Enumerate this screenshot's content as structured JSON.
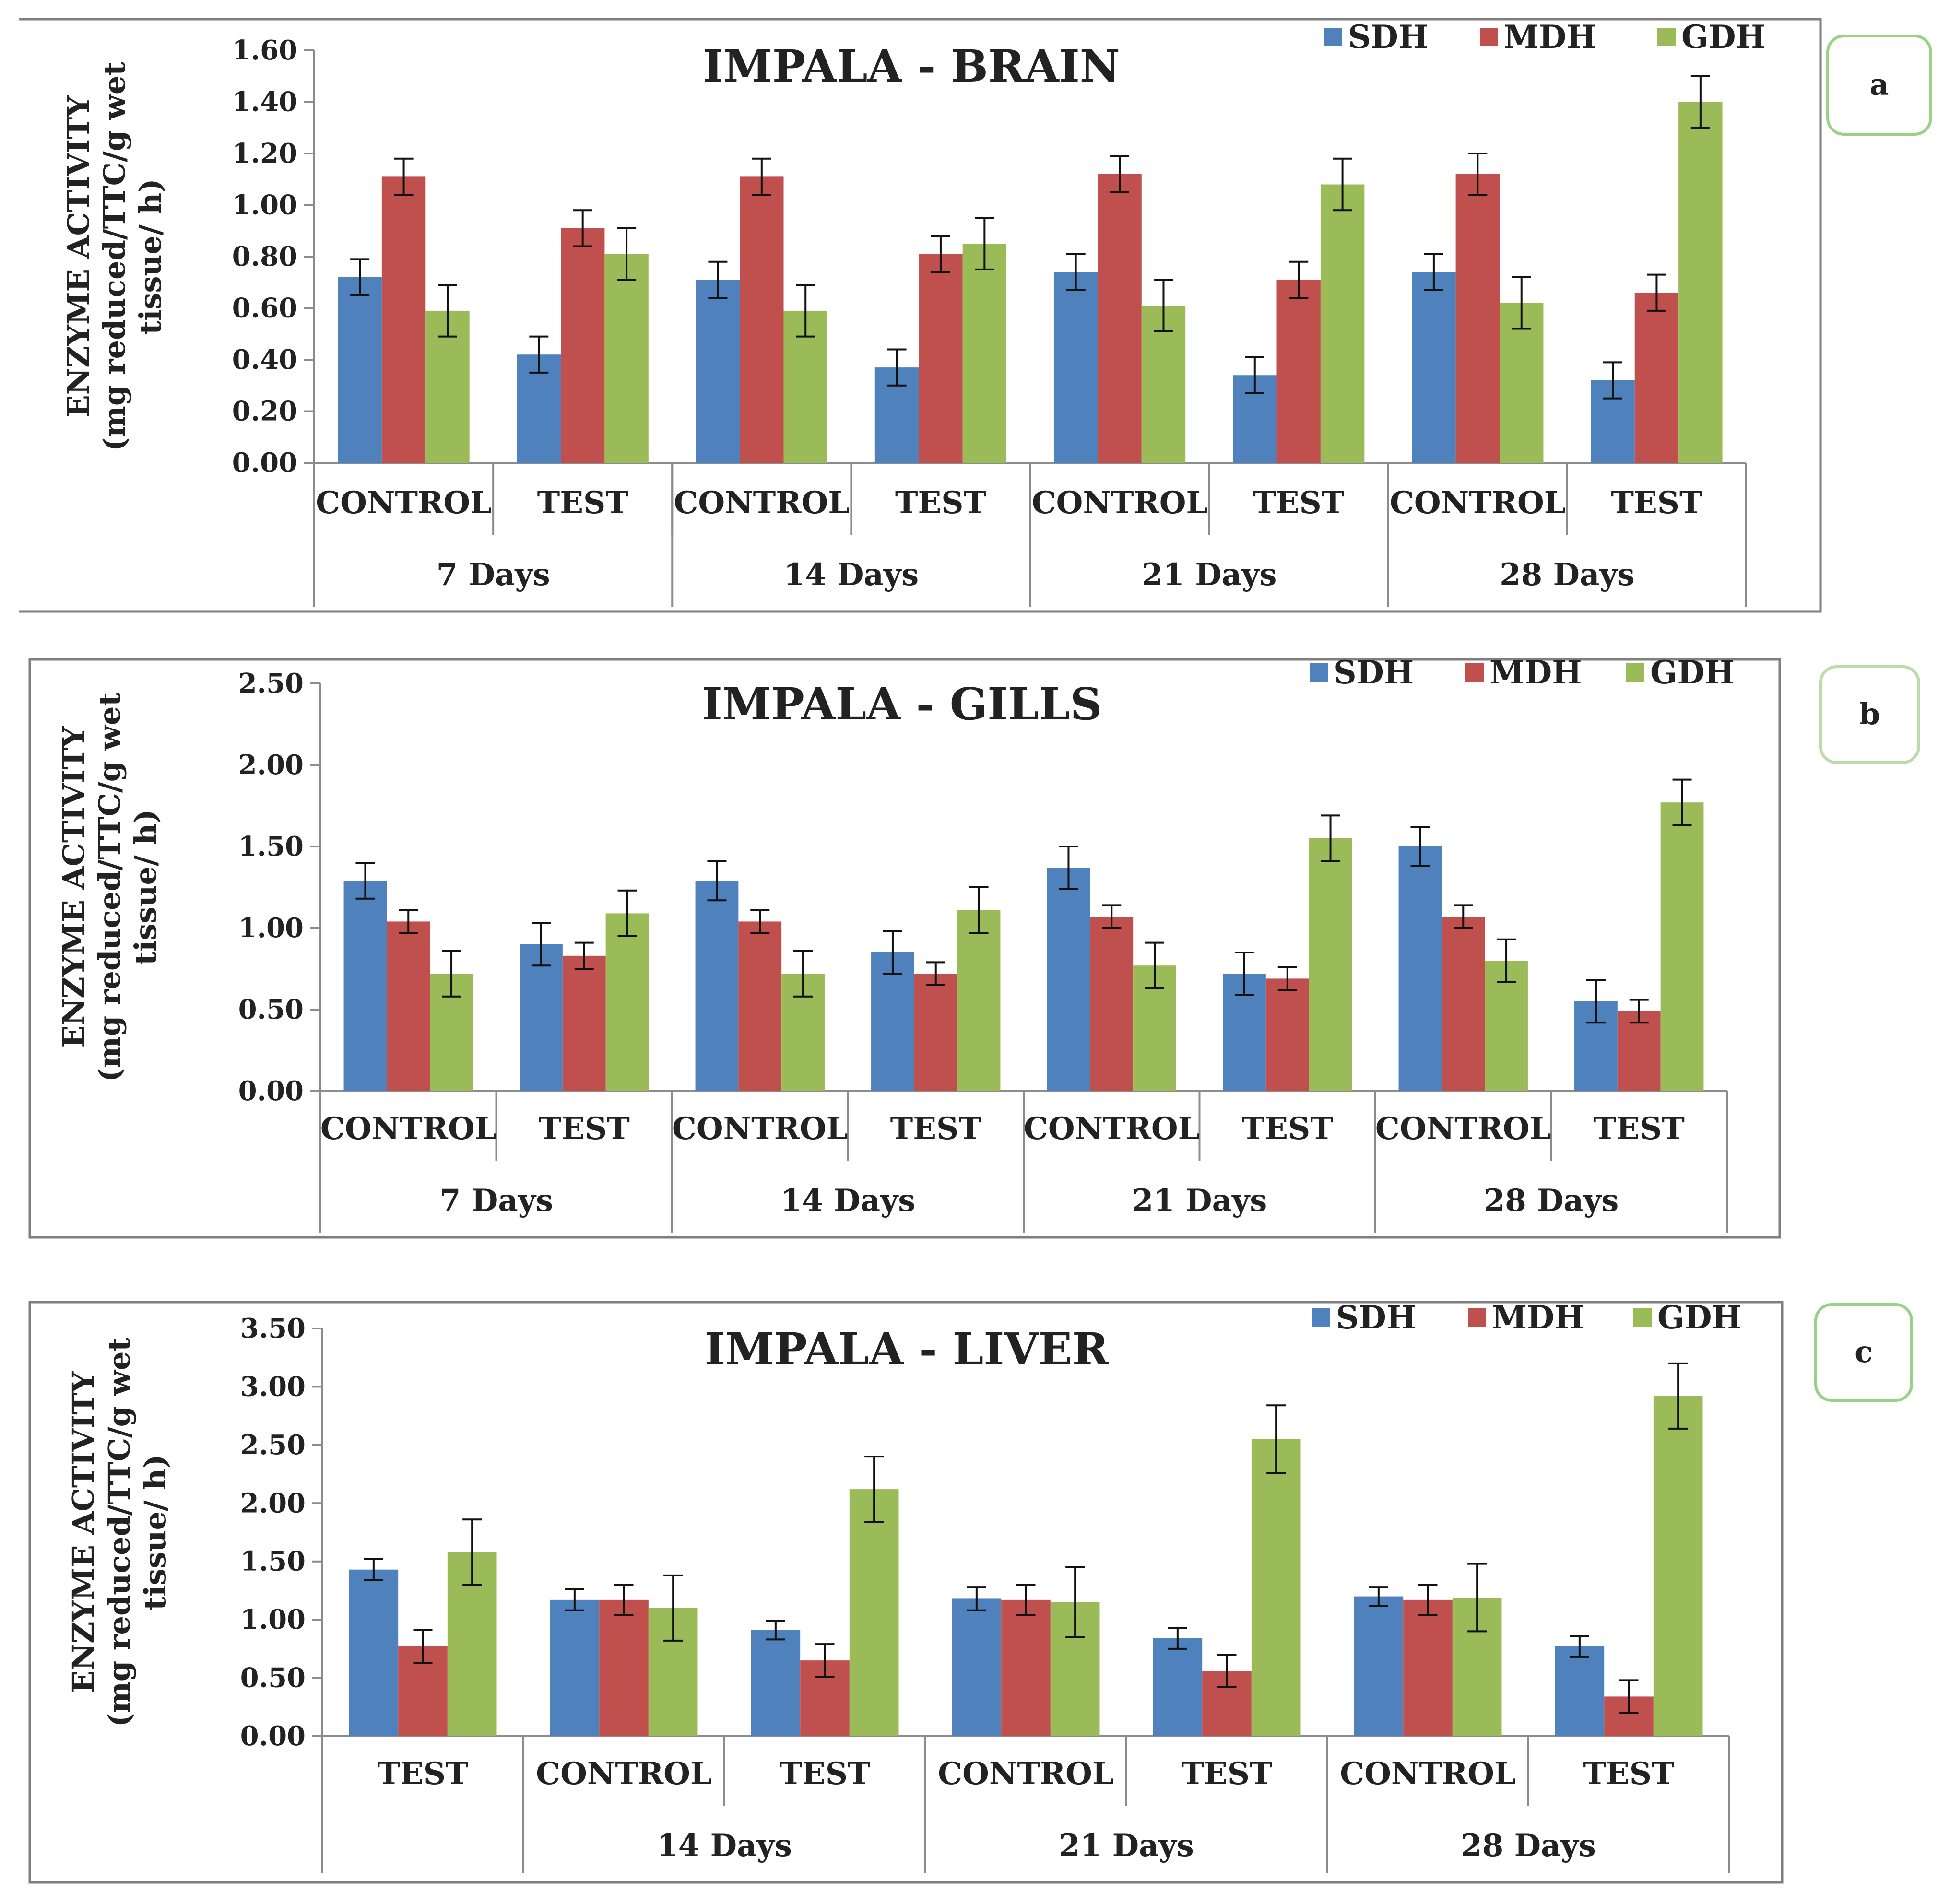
{
  "chart_data": [
    {
      "id": "brain",
      "type": "bar",
      "title": "IMPALA - BRAIN",
      "panel_label": "a",
      "ylabel_line1": "ENZYME ACTIVITY",
      "ylabel_line2": "(mg reduced/TTC/g wet",
      "ylabel_line3": "tissue/ h)",
      "ylim": [
        0,
        1.6
      ],
      "yticks": [
        "0.00",
        "0.20",
        "0.40",
        "0.60",
        "0.80",
        "1.00",
        "1.20",
        "1.40",
        "1.60"
      ],
      "categories": [
        "CONTROL",
        "TEST",
        "CONTROL",
        "TEST",
        "CONTROL",
        "TEST",
        "CONTROL",
        "TEST"
      ],
      "groups": [
        "7 Days",
        "14 Days",
        "21 Days",
        "28 Days"
      ],
      "legend_position": "top-right",
      "series": [
        {
          "name": "SDH",
          "color": "#4f81bd",
          "values": [
            0.72,
            0.42,
            0.71,
            0.37,
            0.74,
            0.34,
            0.74,
            0.32
          ],
          "errors": [
            0.07,
            0.07,
            0.07,
            0.07,
            0.07,
            0.07,
            0.07,
            0.07
          ]
        },
        {
          "name": "MDH",
          "color": "#c0504d",
          "values": [
            1.11,
            0.91,
            1.11,
            0.81,
            1.12,
            0.71,
            1.12,
            0.66
          ],
          "errors": [
            0.07,
            0.07,
            0.07,
            0.07,
            0.07,
            0.07,
            0.08,
            0.07
          ]
        },
        {
          "name": "GDH",
          "color": "#9bbb59",
          "values": [
            0.59,
            0.81,
            0.59,
            0.85,
            0.61,
            1.08,
            0.62,
            1.4
          ],
          "errors": [
            0.1,
            0.1,
            0.1,
            0.1,
            0.1,
            0.1,
            0.1,
            0.1
          ]
        }
      ]
    },
    {
      "id": "gills",
      "type": "bar",
      "title": "IMPALA -  GILLS",
      "panel_label": "b",
      "ylabel_line1": "ENZYME ACTIVITY",
      "ylabel_line2": "(mg reduced/TTC/g wet",
      "ylabel_line3": "tissue/ h)",
      "ylim": [
        0,
        2.5
      ],
      "yticks": [
        "0.00",
        "0.50",
        "1.00",
        "1.50",
        "2.00",
        "2.50"
      ],
      "categories": [
        "CONTROL",
        "TEST",
        "CONTROL",
        "TEST",
        "CONTROL",
        "TEST",
        "CONTROL",
        "TEST"
      ],
      "groups": [
        "7 Days",
        "14 Days",
        "21 Days",
        "28 Days"
      ],
      "legend_position": "top-right",
      "series": [
        {
          "name": "SDH",
          "color": "#4f81bd",
          "values": [
            1.29,
            0.9,
            1.29,
            0.85,
            1.37,
            0.72,
            1.5,
            0.55
          ],
          "errors": [
            0.11,
            0.13,
            0.12,
            0.13,
            0.13,
            0.13,
            0.12,
            0.13
          ]
        },
        {
          "name": "MDH",
          "color": "#c0504d",
          "values": [
            1.04,
            0.83,
            1.04,
            0.72,
            1.07,
            0.69,
            1.07,
            0.49
          ],
          "errors": [
            0.07,
            0.08,
            0.07,
            0.07,
            0.07,
            0.07,
            0.07,
            0.07
          ]
        },
        {
          "name": "GDH",
          "color": "#9bbb59",
          "values": [
            0.72,
            1.09,
            0.72,
            1.11,
            0.77,
            1.55,
            0.8,
            1.77
          ],
          "errors": [
            0.14,
            0.14,
            0.14,
            0.14,
            0.14,
            0.14,
            0.13,
            0.14
          ]
        }
      ]
    },
    {
      "id": "liver",
      "type": "bar",
      "title": "IMPALA  - LIVER",
      "panel_label": "c",
      "ylabel_line1": "ENZYME ACTIVITY",
      "ylabel_line2": "(mg reduced/TTC/g wet",
      "ylabel_line3": "tissue/ h)",
      "ylim": [
        0,
        3.5
      ],
      "yticks": [
        "0.00",
        "0.50",
        "1.00",
        "1.50",
        "2.00",
        "2.50",
        "3.00",
        "3.50"
      ],
      "categories": [
        "TEST",
        "CONTROL",
        "TEST",
        "CONTROL",
        "TEST",
        "CONTROL",
        "TEST"
      ],
      "groups": [
        "",
        "14 Days",
        "21 Days",
        "28 Days"
      ],
      "legend_position": "top-right",
      "series": [
        {
          "name": "SDH",
          "color": "#4f81bd",
          "values": [
            1.43,
            1.17,
            0.91,
            1.18,
            0.84,
            1.2,
            0.77
          ],
          "errors": [
            0.09,
            0.09,
            0.08,
            0.1,
            0.09,
            0.08,
            0.09
          ]
        },
        {
          "name": "MDH",
          "color": "#c0504d",
          "values": [
            0.77,
            1.17,
            0.65,
            1.17,
            0.56,
            1.17,
            0.34
          ],
          "errors": [
            0.14,
            0.13,
            0.14,
            0.13,
            0.14,
            0.13,
            0.14
          ]
        },
        {
          "name": "GDH",
          "color": "#9bbb59",
          "values": [
            1.58,
            1.1,
            2.12,
            1.15,
            2.55,
            1.19,
            2.92
          ],
          "errors": [
            0.28,
            0.28,
            0.28,
            0.3,
            0.29,
            0.29,
            0.28
          ]
        }
      ]
    }
  ]
}
